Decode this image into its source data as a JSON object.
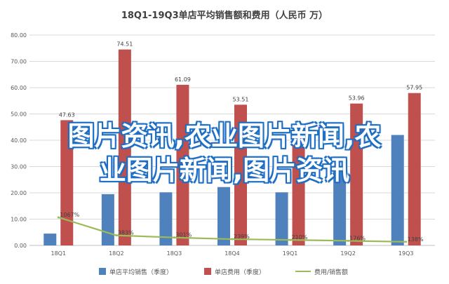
{
  "colors": {
    "bar_sales": "#4f81bd",
    "bar_cost": "#c0504d",
    "line_ratio": "#9bbb59",
    "grid": "#d9d9d9",
    "axis_text": "#595959",
    "watermark_text": "#ffffff"
  },
  "watermark": {
    "line1": "图片资讯,农业图片新闻,农",
    "line2": "业图片新闻,图片资讯"
  },
  "chart_data": {
    "type": "bar",
    "title": "18Q1-19Q3单店平均销售额和费用（人民币 万）",
    "categories": [
      "18Q1",
      "18Q2",
      "18Q3",
      "18Q4",
      "19Q1",
      "19Q2",
      "19Q3"
    ],
    "ylim": [
      0,
      80
    ],
    "yticks": [
      "0.00",
      "10.00",
      "20.00",
      "30.00",
      "40.00",
      "50.00",
      "60.00",
      "70.00",
      "80.00"
    ],
    "grid": true,
    "legend_position": "bottom",
    "series": [
      {
        "name": "单店平均销售（季度）",
        "type": "bar",
        "values": [
          4.5,
          19.5,
          20.2,
          22.2,
          20.2,
          30.2,
          42.0
        ]
      },
      {
        "name": "单店费用（季度）",
        "type": "bar",
        "values": [
          47.63,
          74.51,
          61.09,
          53.51,
          41.0,
          53.96,
          57.95
        ],
        "labels": [
          "47.63",
          "74.51",
          "61.09",
          "53.51",
          "",
          "53.96",
          "57.95"
        ]
      },
      {
        "name": "费用/销售额",
        "type": "line",
        "values": [
          10.67,
          3.83,
          3.01,
          2.39,
          2.1,
          1.76,
          1.38
        ],
        "labels": [
          "1067%",
          "383%",
          "301%",
          "239%",
          "210%",
          "176%",
          "138%"
        ]
      }
    ]
  }
}
